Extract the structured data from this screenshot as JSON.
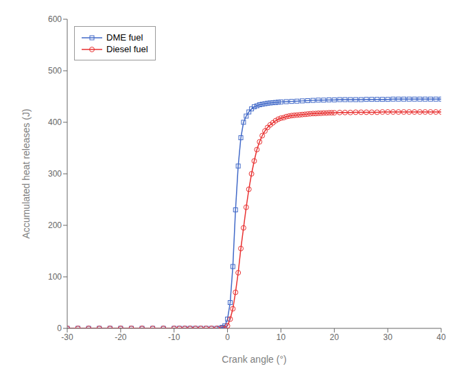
{
  "chart_data": {
    "type": "line",
    "xlabel": "Crank angle (°)",
    "ylabel": "Accumulated heat releases (J)",
    "xlim": [
      -30,
      40
    ],
    "ylim": [
      0,
      600
    ],
    "xticks": [
      -30,
      -20,
      -10,
      0,
      10,
      20,
      30,
      40
    ],
    "yticks": [
      0,
      100,
      200,
      300,
      400,
      500,
      600
    ],
    "grid": false,
    "legend": "upper left",
    "series": [
      {
        "name": "DME fuel",
        "color": "#4169c8",
        "marker": "square",
        "x": [
          -30,
          -28,
          -26,
          -24,
          -22,
          -20,
          -18,
          -16,
          -14,
          -12,
          -10,
          -9,
          -8,
          -7,
          -6,
          -5,
          -4,
          -3,
          -2,
          -1.5,
          -1,
          -0.5,
          0,
          0.5,
          1,
          1.5,
          2,
          2.5,
          3,
          3.5,
          4,
          4.5,
          5,
          5.5,
          6,
          6.5,
          7,
          7.5,
          8,
          8.5,
          9,
          9.5,
          10,
          11,
          12,
          13,
          14,
          15,
          16,
          17,
          18,
          19,
          20,
          21,
          22,
          23,
          24,
          25,
          26,
          27,
          28,
          29,
          30,
          31,
          32,
          33,
          34,
          35,
          36,
          37,
          38,
          39,
          40
        ],
        "values": [
          0,
          0,
          0,
          0,
          0,
          0,
          0,
          0,
          0,
          0,
          0,
          0,
          0,
          0,
          0,
          0,
          0,
          0,
          0,
          0,
          2,
          5,
          18,
          50,
          120,
          230,
          315,
          370,
          400,
          412,
          420,
          426,
          430,
          432,
          434,
          435,
          436,
          437,
          437.5,
          438,
          438.5,
          439,
          439.5,
          440,
          440.5,
          441,
          441.5,
          442,
          442.5,
          443,
          443,
          443.5,
          443.5,
          444,
          444,
          444,
          444,
          444,
          444.5,
          444.5,
          444.5,
          444.5,
          444.5,
          445,
          445,
          445,
          445,
          445,
          445,
          445,
          445,
          445,
          445
        ]
      },
      {
        "name": "Diesel fuel",
        "color": "#e83030",
        "marker": "circle",
        "x": [
          -30,
          -28,
          -26,
          -24,
          -22,
          -20,
          -18,
          -16,
          -14,
          -12,
          -10,
          -9,
          -8,
          -7,
          -6,
          -5,
          -4,
          -3,
          -2,
          -1,
          0,
          0.5,
          1,
          1.5,
          2,
          2.5,
          3,
          3.5,
          4,
          4.5,
          5,
          5.5,
          6,
          6.5,
          7,
          7.5,
          8,
          8.5,
          9,
          9.5,
          10,
          10.5,
          11,
          11.5,
          12,
          12.5,
          13,
          13.5,
          14,
          14.5,
          15,
          15.5,
          16,
          16.5,
          17,
          17.5,
          18,
          18.5,
          19,
          19.5,
          20,
          21,
          22,
          23,
          24,
          25,
          26,
          27,
          28,
          29,
          30,
          31,
          32,
          33,
          34,
          35,
          36,
          37,
          38,
          39,
          40
        ],
        "values": [
          0,
          0,
          0,
          0,
          0,
          0,
          0,
          0,
          0,
          0,
          0,
          0,
          0,
          0,
          0,
          0,
          0,
          0,
          0,
          0,
          5,
          18,
          38,
          70,
          108,
          155,
          195,
          235,
          270,
          300,
          325,
          347,
          362,
          374,
          383,
          390,
          395,
          399,
          403,
          406,
          408,
          409,
          411,
          412,
          413,
          413.5,
          414,
          414.5,
          415,
          415.5,
          416,
          416.5,
          417,
          417,
          417.5,
          417.5,
          418,
          418,
          418.5,
          418.5,
          418.5,
          419,
          419,
          419,
          419.5,
          419.5,
          419.5,
          419.5,
          419.5,
          420,
          420,
          420,
          420,
          420,
          420,
          420,
          420,
          420,
          420,
          420,
          420
        ]
      }
    ]
  }
}
